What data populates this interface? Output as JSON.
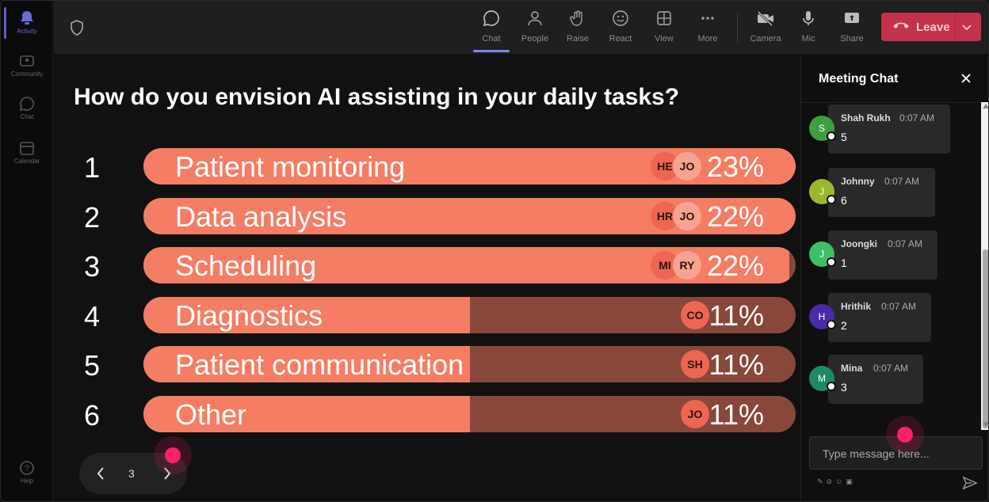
{
  "rail": {
    "items": [
      {
        "label": "Activity",
        "icon": "bell-icon",
        "active": true
      },
      {
        "label": "Community",
        "icon": "community-icon"
      },
      {
        "label": "Chat",
        "icon": "chat-icon"
      },
      {
        "label": "Calendar",
        "icon": "calendar-icon"
      },
      {
        "label": "Help",
        "icon": "help-icon"
      }
    ]
  },
  "toolbar": {
    "buttons": [
      {
        "label": "Chat",
        "icon": "chat-icon",
        "active": true
      },
      {
        "label": "People",
        "icon": "people-icon"
      },
      {
        "label": "Raise",
        "icon": "hand-icon"
      },
      {
        "label": "React",
        "icon": "smiley-icon"
      },
      {
        "label": "View",
        "icon": "grid-icon"
      },
      {
        "label": "More",
        "icon": "more-icon"
      },
      {
        "label": "Camera",
        "icon": "camera-off-icon"
      },
      {
        "label": "Mic",
        "icon": "mic-icon"
      },
      {
        "label": "Share",
        "icon": "share-icon"
      }
    ],
    "leave_label": "Leave",
    "leave_color": "#c4314b"
  },
  "poll": {
    "question": "How do you envision AI assisting in your daily tasks?",
    "fill_color": "#f57d63",
    "track_color": "#87473a",
    "options": [
      {
        "num": "1",
        "label": "Patient monitoring",
        "pct": "23%",
        "value": 23,
        "fill": 1.0,
        "avatars": [
          "HE",
          "JO"
        ]
      },
      {
        "num": "2",
        "label": "Data analysis",
        "pct": "22%",
        "value": 22,
        "fill": 1.0,
        "avatars": [
          "HR",
          "JO"
        ]
      },
      {
        "num": "3",
        "label": "Scheduling",
        "pct": "22%",
        "value": 22,
        "fill": 0.99,
        "avatars": [
          "MI",
          "RY"
        ]
      },
      {
        "num": "4",
        "label": "Diagnostics",
        "pct": "11%",
        "value": 11,
        "fill": 0.5,
        "avatars": [
          "CO"
        ]
      },
      {
        "num": "5",
        "label": "Patient communication",
        "pct": "11%",
        "value": 11,
        "fill": 0.5,
        "avatars": [
          "SH"
        ]
      },
      {
        "num": "6",
        "label": "Other",
        "pct": "11%",
        "value": 11,
        "fill": 0.5,
        "avatars": [
          "JO"
        ]
      }
    ],
    "page": "3"
  },
  "chat": {
    "title": "Meeting Chat",
    "messages": [
      {
        "initial": "S",
        "name": "Shah Rukh",
        "time": "0:07 AM",
        "text": "5",
        "color": "#3f9e3f"
      },
      {
        "initial": "J",
        "name": "Johnny",
        "time": "0:07 AM",
        "text": "6",
        "color": "#9ab82e"
      },
      {
        "initial": "J",
        "name": "Joongki",
        "time": "0:07 AM",
        "text": "1",
        "color": "#3fbf6a"
      },
      {
        "initial": "H",
        "name": "Hrithik",
        "time": "0:07 AM",
        "text": "2",
        "color": "#4a2aa6"
      },
      {
        "initial": "M",
        "name": "Mina",
        "time": "0:07 AM",
        "text": "3",
        "color": "#1e8a64"
      }
    ],
    "input_placeholder": "Type message here..."
  }
}
